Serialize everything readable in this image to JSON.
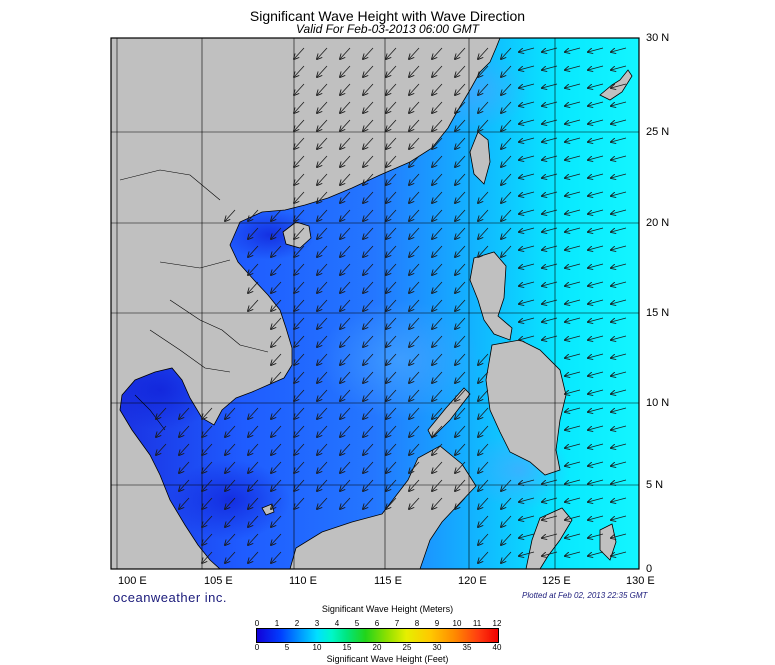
{
  "title": "Significant Wave Height with Wave Direction",
  "subtitle": "Valid For Feb-03-2013 06:00 GMT",
  "brand": "oceanweather inc.",
  "plotted": "Plotted at Feb 02, 2013 22:35 GMT",
  "map": {
    "lon_labels": [
      "100 E",
      "105 E",
      "110 E",
      "115 E",
      "120 E",
      "125 E",
      "130 E"
    ],
    "lat_labels": [
      "30 N",
      "25 N",
      "20 N",
      "15 N",
      "10 N",
      "5 N",
      "0"
    ],
    "lon_range": [
      99,
      130
    ],
    "lat_range": [
      0,
      30
    ],
    "grid": true,
    "land_color": "#c0c0c0",
    "coast_color": "#000000",
    "arrow_color": "#1a1a1a",
    "arrow_direction": "toward southwest"
  },
  "colorbar": {
    "title_top": "Significant Wave Height (Meters)",
    "title_bottom": "Significant Wave Height (Feet)",
    "meters": [
      "0",
      "1",
      "2",
      "3",
      "4",
      "5",
      "6",
      "7",
      "8",
      "9",
      "10",
      "11",
      "12"
    ],
    "feet": [
      "0",
      "5",
      "10",
      "15",
      "20",
      "25",
      "30",
      "35",
      "40"
    ]
  },
  "colors": {
    "low": "#1200d8",
    "mid_low": "#0060ff",
    "mid": "#00c8ff",
    "high": "#00ffff"
  }
}
